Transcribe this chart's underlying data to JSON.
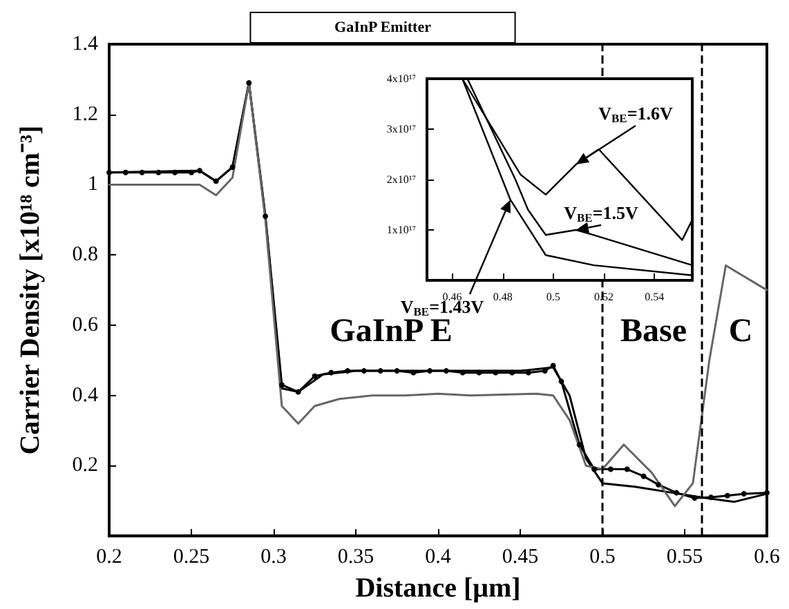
{
  "chart_data": [
    {
      "type": "line",
      "xlabel": "Distance [μm]",
      "ylabel": "Carrier Density [x10¹⁸ cm⁻³]",
      "xlim": [
        0.2,
        0.6
      ],
      "xticks": [
        0.2,
        0.25,
        0.3,
        0.35,
        0.4,
        0.45,
        0.5,
        0.55,
        0.6
      ],
      "ylim": [
        0,
        1.4
      ],
      "yticks": [
        0.2,
        0.4,
        0.6,
        0.8,
        1,
        1.2,
        1.4
      ],
      "series": [
        {
          "color": "#000000",
          "marker": "circle",
          "x": [
            0.2,
            0.21,
            0.22,
            0.23,
            0.24,
            0.25,
            0.255,
            0.265,
            0.275,
            0.285,
            0.295,
            0.305,
            0.315,
            0.325,
            0.335,
            0.345,
            0.355,
            0.365,
            0.375,
            0.385,
            0.395,
            0.405,
            0.415,
            0.425,
            0.435,
            0.445,
            0.455,
            0.465,
            0.47,
            0.475,
            0.486,
            0.495,
            0.505,
            0.515,
            0.525,
            0.534,
            0.545,
            0.556,
            0.566,
            0.576,
            0.586,
            0.6
          ],
          "values": [
            1.035,
            1.035,
            1.035,
            1.035,
            1.035,
            1.035,
            1.04,
            1.01,
            1.05,
            1.29,
            0.91,
            0.43,
            0.41,
            0.455,
            0.465,
            0.47,
            0.47,
            0.47,
            0.47,
            0.465,
            0.47,
            0.47,
            0.465,
            0.465,
            0.465,
            0.465,
            0.465,
            0.47,
            0.485,
            0.44,
            0.26,
            0.19,
            0.19,
            0.19,
            0.17,
            0.146,
            0.123,
            0.108,
            0.11,
            0.115,
            0.12,
            0.123
          ]
        },
        {
          "color": "#000000",
          "marker": "none",
          "x": [
            0.2,
            0.255,
            0.265,
            0.275,
            0.285,
            0.295,
            0.305,
            0.315,
            0.33,
            0.35,
            0.45,
            0.47,
            0.48,
            0.49,
            0.5,
            0.52,
            0.54,
            0.56,
            0.58,
            0.6
          ],
          "values": [
            1.035,
            1.04,
            1.01,
            1.05,
            1.29,
            0.91,
            0.42,
            0.41,
            0.46,
            0.47,
            0.47,
            0.48,
            0.4,
            0.22,
            0.15,
            0.14,
            0.125,
            0.11,
            0.097,
            0.12
          ]
        },
        {
          "color": "#666666",
          "marker": "none",
          "x": [
            0.2,
            0.255,
            0.265,
            0.275,
            0.285,
            0.295,
            0.305,
            0.315,
            0.325,
            0.34,
            0.36,
            0.38,
            0.4,
            0.42,
            0.46,
            0.47,
            0.48,
            0.49,
            0.5,
            0.513,
            0.53,
            0.544,
            0.555,
            0.565,
            0.575,
            0.6
          ],
          "values": [
            1.0,
            1.0,
            0.97,
            1.02,
            1.29,
            0.9,
            0.37,
            0.32,
            0.37,
            0.39,
            0.4,
            0.4,
            0.405,
            0.4,
            0.405,
            0.4,
            0.33,
            0.2,
            0.19,
            0.26,
            0.18,
            0.085,
            0.15,
            0.5,
            0.77,
            0.7
          ]
        }
      ],
      "ref_lines": [
        {
          "axis": "x",
          "value": 0.5,
          "line_style": "dashed"
        },
        {
          "axis": "x",
          "value": 0.56,
          "line_style": "dashed"
        }
      ],
      "annotations": [
        "GaInP Emitter",
        "GaInP E",
        "Base",
        "C"
      ]
    },
    {
      "type": "line",
      "xlim": [
        0.45,
        0.555
      ],
      "xticks": [
        0.46,
        0.48,
        0.5,
        0.52,
        0.54
      ],
      "ylim": [
        0,
        4e+17
      ],
      "yticks": [
        {
          "value": 1e+17,
          "label": "1x10¹⁷"
        },
        {
          "value": 2e+17,
          "label": "2x10¹⁷"
        },
        {
          "value": 3e+17,
          "label": "3x10¹⁷"
        },
        {
          "value": 4e+17,
          "label": "4x10¹⁷"
        }
      ],
      "series": [
        {
          "name": "V$_{BE}$=1.6V",
          "color": "#000000",
          "x": [
            0.464,
            0.487,
            0.497,
            0.509,
            0.518,
            0.551,
            0.555
          ],
          "values": [
            4e+17,
            2.1e+17,
            1.7e+17,
            2.3e+17,
            2.6e+17,
            8e+16,
            1.2e+17
          ]
        },
        {
          "name": "V$_{BE}$=1.5V",
          "color": "#000000",
          "x": [
            0.466,
            0.485,
            0.49,
            0.497,
            0.509,
            0.516,
            0.555
          ],
          "values": [
            4e+17,
            2e+17,
            1.4e+17,
            9e+16,
            1e+17,
            9e+16,
            3e+16
          ]
        },
        {
          "name": "V$_{BE}$=1.43V",
          "color": "#000000",
          "x": [
            0.464,
            0.483,
            0.497,
            0.516,
            0.555
          ],
          "values": [
            4e+17,
            1.6e+17,
            5e+16,
            3e+16,
            1e+16
          ]
        }
      ]
    }
  ]
}
